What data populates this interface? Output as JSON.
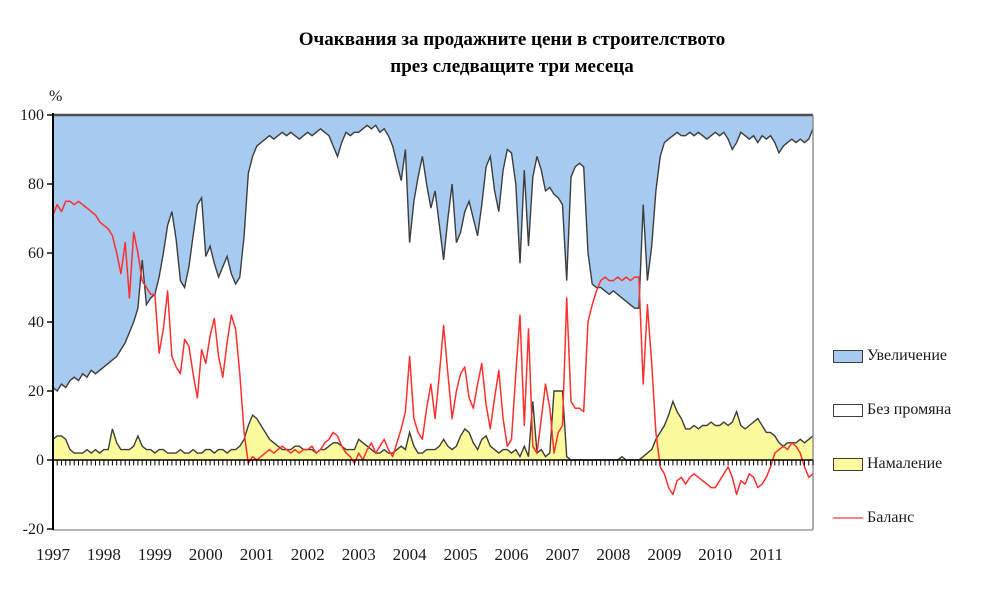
{
  "title": {
    "line1": "Очаквания за продажните цени в строителството",
    "line2": "през следващите три месеца"
  },
  "y_axis": {
    "unit": "%",
    "ticks": [
      100,
      80,
      60,
      40,
      20,
      0,
      -20
    ],
    "min": -20,
    "max": 100
  },
  "x_axis": {
    "year_labels": [
      "1997",
      "1998",
      "1999",
      "2000",
      "2001",
      "2002",
      "2003",
      "2004",
      "2005",
      "2006",
      "2007",
      "2008",
      "2009",
      "2010",
      "2011"
    ],
    "frequency": "monthly"
  },
  "legend": [
    {
      "label": "Увеличение",
      "swatch": "area",
      "color": "#A6CAF0"
    },
    {
      "label": "Без промяна",
      "swatch": "area",
      "color": "#FFFFFF"
    },
    {
      "label": "Намаление",
      "swatch": "area",
      "color": "#FBFB9E"
    },
    {
      "label": "Баланс",
      "swatch": "line",
      "color": "#FF8585"
    }
  ],
  "colors": {
    "increase_fill": "#A6CAF0",
    "no_change_fill": "#FFFFFF",
    "decrease_fill": "#FBFB9E",
    "boundary_stroke": "#3d3d3d",
    "balance_line": "#FF3030",
    "axis": "#000000",
    "frame": "#8a8a8a",
    "frame_top": "#4d4d4d"
  },
  "chart_data": {
    "type": "area",
    "subtype": "stacked-100pct-areas-with-balance-line",
    "title": "Очаквания за продажните цени в строителството през следващите три месеца",
    "xlabel": "",
    "ylabel": "%",
    "ylim": [
      -20,
      100
    ],
    "x_start_year": 1997,
    "x_end_year": 2011,
    "points_per_year": 12,
    "grid": false,
    "legend_position": "right",
    "stack_order_bottom_to_top": [
      "Намаление",
      "Без промяна",
      "Увеличение"
    ],
    "series": [
      {
        "name": "Намаление",
        "type": "area",
        "color": "#FBFB9E",
        "values": [
          6,
          7,
          7,
          6,
          3,
          2,
          2,
          2,
          3,
          2,
          3,
          2,
          3,
          3,
          9,
          5,
          3,
          3,
          3,
          4,
          7,
          4,
          3,
          3,
          2,
          3,
          3,
          2,
          2,
          2,
          3,
          2,
          2,
          3,
          2,
          2,
          3,
          3,
          2,
          3,
          3,
          2,
          3,
          3,
          4,
          6,
          10,
          13,
          12,
          10,
          8,
          6,
          5,
          4,
          3,
          3,
          3,
          4,
          4,
          3,
          3,
          3,
          2,
          3,
          3,
          4,
          5,
          5,
          4,
          3,
          3,
          3,
          6,
          5,
          4,
          3,
          2,
          2,
          3,
          2,
          2,
          3,
          4,
          3,
          8,
          4,
          2,
          2,
          3,
          3,
          3,
          4,
          6,
          4,
          3,
          4,
          7,
          9,
          8,
          5,
          3,
          6,
          7,
          4,
          3,
          2,
          3,
          3,
          2,
          3,
          1,
          4,
          1,
          17,
          2,
          3,
          1,
          2,
          20,
          20,
          20,
          1,
          0,
          0,
          0,
          0,
          0,
          0,
          0,
          0,
          0,
          0,
          0,
          0,
          1,
          0,
          0,
          0,
          0,
          1,
          2,
          3,
          6,
          8,
          10,
          13,
          17,
          14,
          12,
          9,
          9,
          10,
          9,
          10,
          10,
          11,
          10,
          10,
          11,
          10,
          11,
          14,
          10,
          9,
          10,
          11,
          12,
          10,
          8,
          8,
          7,
          5,
          4,
          5,
          5,
          5,
          6,
          5,
          6,
          7
        ]
      },
      {
        "name": "Без промяна",
        "type": "area",
        "color": "#FFFFFF",
        "values": [
          15,
          13,
          15,
          15,
          20,
          22,
          21,
          23,
          21,
          24,
          22,
          24,
          24,
          25,
          20,
          25,
          29,
          31,
          34,
          36,
          37,
          54,
          42,
          44,
          46,
          50,
          57,
          66,
          70,
          62,
          49,
          48,
          54,
          62,
          72,
          74,
          56,
          59,
          55,
          50,
          53,
          57,
          51,
          48,
          49,
          59,
          73,
          75,
          79,
          82,
          85,
          88,
          88,
          90,
          92,
          91,
          92,
          90,
          89,
          91,
          92,
          91,
          93,
          93,
          92,
          90,
          86,
          83,
          88,
          92,
          91,
          92,
          89,
          91,
          93,
          93,
          95,
          93,
          93,
          92,
          89,
          83,
          77,
          87,
          55,
          71,
          80,
          86,
          77,
          70,
          75,
          64,
          52,
          66,
          77,
          59,
          59,
          63,
          67,
          65,
          62,
          68,
          78,
          84,
          75,
          70,
          81,
          87,
          87,
          77,
          56,
          80,
          61,
          65,
          86,
          81,
          77,
          77,
          57,
          56,
          54,
          51,
          82,
          85,
          86,
          85,
          60,
          51,
          50,
          50,
          49,
          48,
          49,
          48,
          46,
          46,
          45,
          44,
          44,
          73,
          50,
          59,
          72,
          80,
          82,
          80,
          77,
          81,
          82,
          85,
          86,
          84,
          86,
          84,
          83,
          83,
          85,
          84,
          84,
          83,
          79,
          78,
          85,
          85,
          83,
          83,
          80,
          84,
          85,
          86,
          85,
          84,
          87,
          87,
          88,
          87,
          87,
          87,
          87,
          89
        ]
      },
      {
        "name": "Увеличение",
        "type": "area",
        "color": "#A6CAF0",
        "values": [
          79,
          80,
          78,
          79,
          77,
          76,
          77,
          75,
          76,
          74,
          75,
          74,
          73,
          72,
          71,
          70,
          68,
          66,
          63,
          60,
          56,
          42,
          55,
          53,
          52,
          47,
          40,
          32,
          28,
          36,
          48,
          50,
          44,
          35,
          26,
          24,
          41,
          38,
          43,
          47,
          44,
          41,
          46,
          49,
          47,
          35,
          17,
          12,
          9,
          8,
          7,
          6,
          7,
          6,
          5,
          6,
          5,
          6,
          7,
          6,
          5,
          6,
          5,
          4,
          5,
          6,
          9,
          12,
          8,
          5,
          6,
          5,
          5,
          4,
          3,
          4,
          3,
          5,
          4,
          6,
          9,
          14,
          19,
          10,
          37,
          25,
          18,
          12,
          20,
          27,
          22,
          32,
          42,
          30,
          20,
          37,
          34,
          28,
          25,
          30,
          35,
          26,
          15,
          12,
          22,
          28,
          16,
          10,
          11,
          20,
          43,
          16,
          38,
          18,
          12,
          16,
          22,
          21,
          23,
          24,
          26,
          48,
          18,
          15,
          14,
          15,
          40,
          49,
          50,
          50,
          51,
          52,
          51,
          52,
          53,
          54,
          55,
          56,
          56,
          26,
          48,
          38,
          22,
          12,
          8,
          7,
          6,
          5,
          6,
          6,
          5,
          6,
          5,
          6,
          7,
          6,
          5,
          6,
          5,
          7,
          10,
          8,
          5,
          6,
          7,
          6,
          8,
          6,
          7,
          6,
          8,
          11,
          9,
          8,
          7,
          8,
          7,
          8,
          7,
          4
        ]
      },
      {
        "name": "Баланс",
        "type": "line",
        "color": "#FF3030",
        "values": [
          71,
          74,
          72,
          75,
          75,
          74,
          75,
          74,
          73,
          72,
          71,
          69,
          68,
          67,
          65,
          60,
          54,
          63,
          47,
          66,
          60,
          52,
          50,
          48,
          48,
          31,
          38,
          49,
          30,
          27,
          25,
          35,
          33,
          25,
          18,
          32,
          28,
          36,
          41,
          30,
          24,
          34,
          42,
          38,
          25,
          8,
          -1,
          1,
          0,
          1,
          2,
          3,
          2,
          3,
          4,
          3,
          2,
          3,
          2,
          3,
          3,
          4,
          2,
          3,
          5,
          6,
          8,
          7,
          4,
          2,
          1,
          -1,
          2,
          0,
          3,
          5,
          2,
          4,
          6,
          3,
          1,
          5,
          9,
          14,
          30,
          12,
          8,
          6,
          15,
          22,
          12,
          25,
          39,
          25,
          12,
          20,
          25,
          27,
          18,
          15,
          22,
          28,
          16,
          9,
          18,
          26,
          12,
          4,
          6,
          25,
          42,
          10,
          38,
          4,
          2,
          12,
          22,
          15,
          2,
          8,
          10,
          47,
          17,
          15,
          15,
          14,
          40,
          45,
          49,
          52,
          53,
          52,
          52,
          53,
          52,
          53,
          52,
          53,
          53,
          22,
          45,
          28,
          8,
          -2,
          -4,
          -8,
          -10,
          -6,
          -5,
          -7,
          -5,
          -4,
          -5,
          -6,
          -7,
          -8,
          -8,
          -6,
          -4,
          -2,
          -5,
          -10,
          -6,
          -7,
          -4,
          -5,
          -8,
          -7,
          -5,
          -2,
          2,
          3,
          4,
          3,
          5,
          4,
          2,
          -2,
          -5,
          -4
        ]
      }
    ]
  }
}
